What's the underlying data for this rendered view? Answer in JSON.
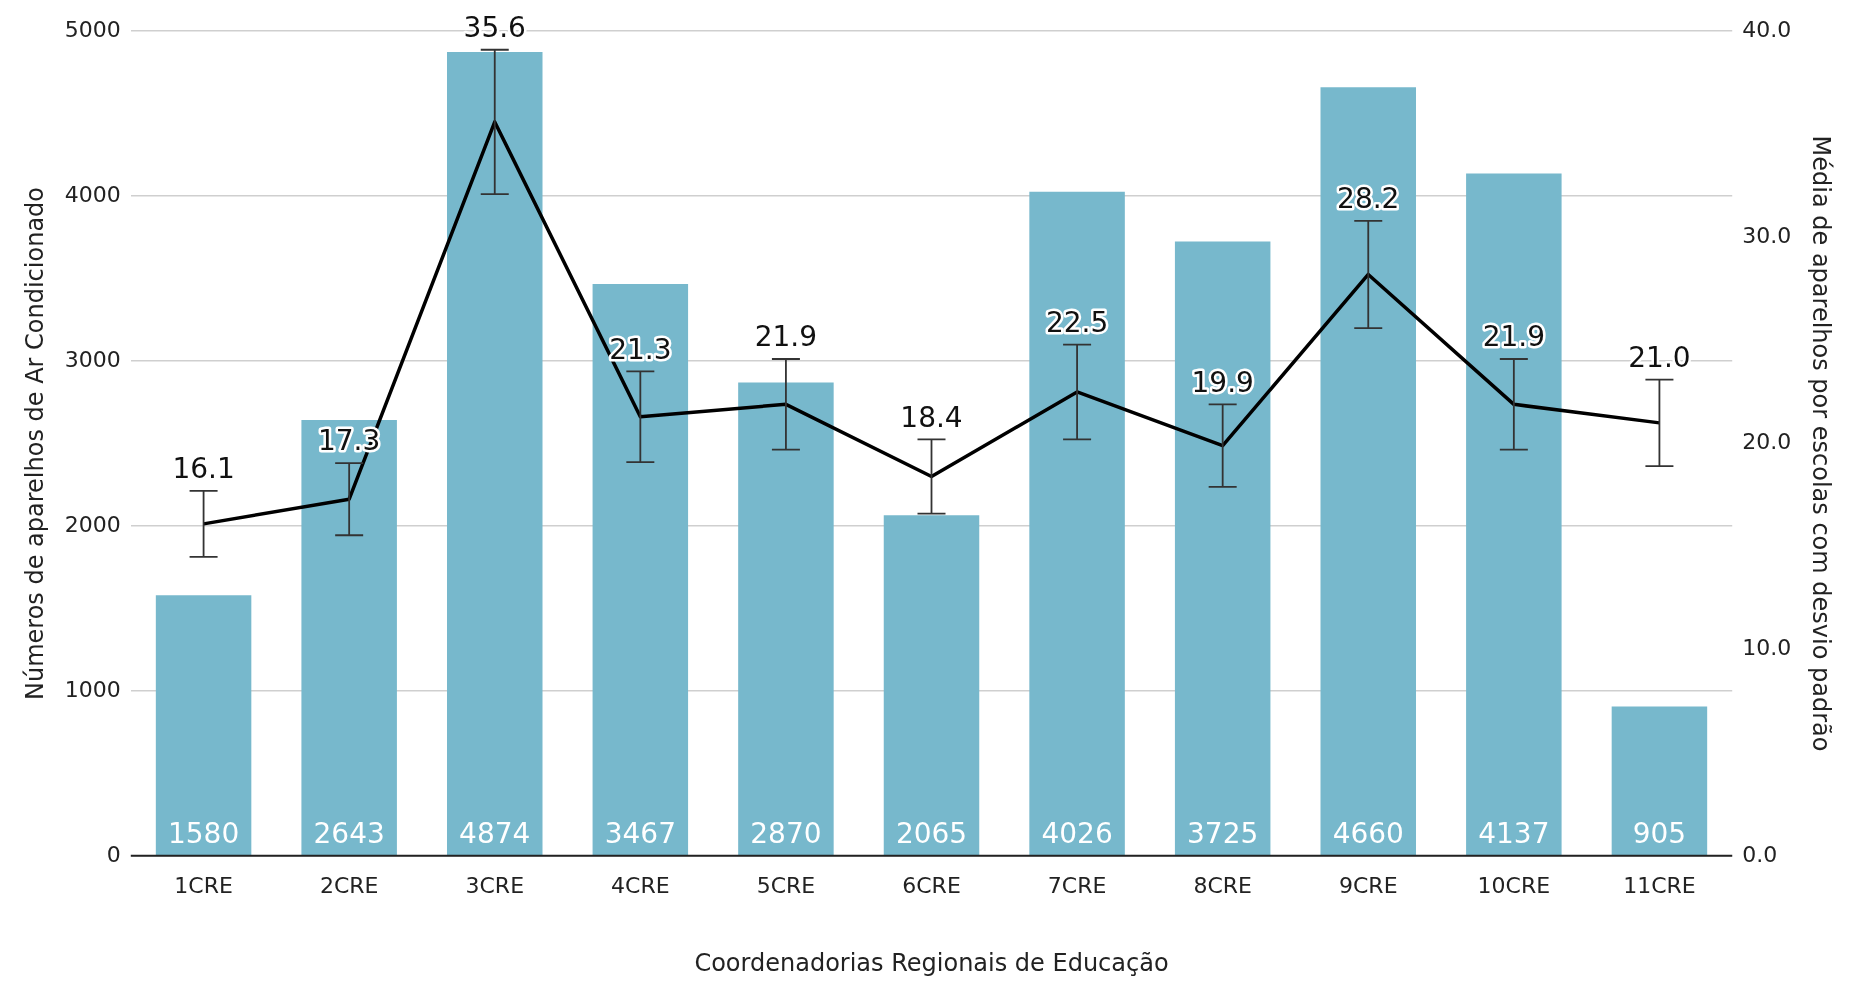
{
  "chart_data": {
    "type": "bar",
    "xlabel": "Coordenadorias Regionais de Educação",
    "ylabel": "Números de aparelhos de Ar Condicionado",
    "y2label": "Média de aparelhos por escolas com desvio padrão",
    "categories": [
      "1CRE",
      "2CRE",
      "3CRE",
      "4CRE",
      "5CRE",
      "6CRE",
      "7CRE",
      "8CRE",
      "9CRE",
      "10CRE",
      "11CRE"
    ],
    "series": [
      {
        "color": "#77b8cc",
        "values": [
          1580,
          2643,
          4874,
          3467,
          2870,
          2065,
          4026,
          3725,
          4660,
          4137,
          905
        ]
      },
      {
        "type": "line",
        "axis": "y2",
        "color": "#000000",
        "values": [
          16.1,
          17.3,
          35.6,
          21.3,
          21.9,
          18.4,
          22.5,
          19.9,
          28.2,
          21.9,
          21.0
        ],
        "errors": [
          1.6,
          1.75,
          3.5,
          2.2,
          2.2,
          1.8,
          2.3,
          2.0,
          2.6,
          2.2,
          2.1
        ],
        "value_labels": [
          "16.1",
          "17.3",
          "35.6",
          "21.3",
          "21.9",
          "18.4",
          "22.5",
          "19.9",
          "28.2",
          "21.9",
          "21.0"
        ]
      }
    ],
    "ylim": [
      0,
      5000
    ],
    "yticks": [
      0,
      1000,
      2000,
      3000,
      4000,
      5000
    ],
    "y2lim": [
      0,
      40
    ],
    "y2ticks": [
      {
        "value": 0,
        "label": "0.0"
      },
      {
        "value": 10,
        "label": "10.0"
      },
      {
        "value": 20,
        "label": "20.0"
      },
      {
        "value": 30,
        "label": "30.0"
      },
      {
        "value": 40,
        "label": "40.0"
      }
    ],
    "grid": "y",
    "legend": false,
    "marker": "none",
    "line_style": "solid",
    "data_labels": true
  }
}
